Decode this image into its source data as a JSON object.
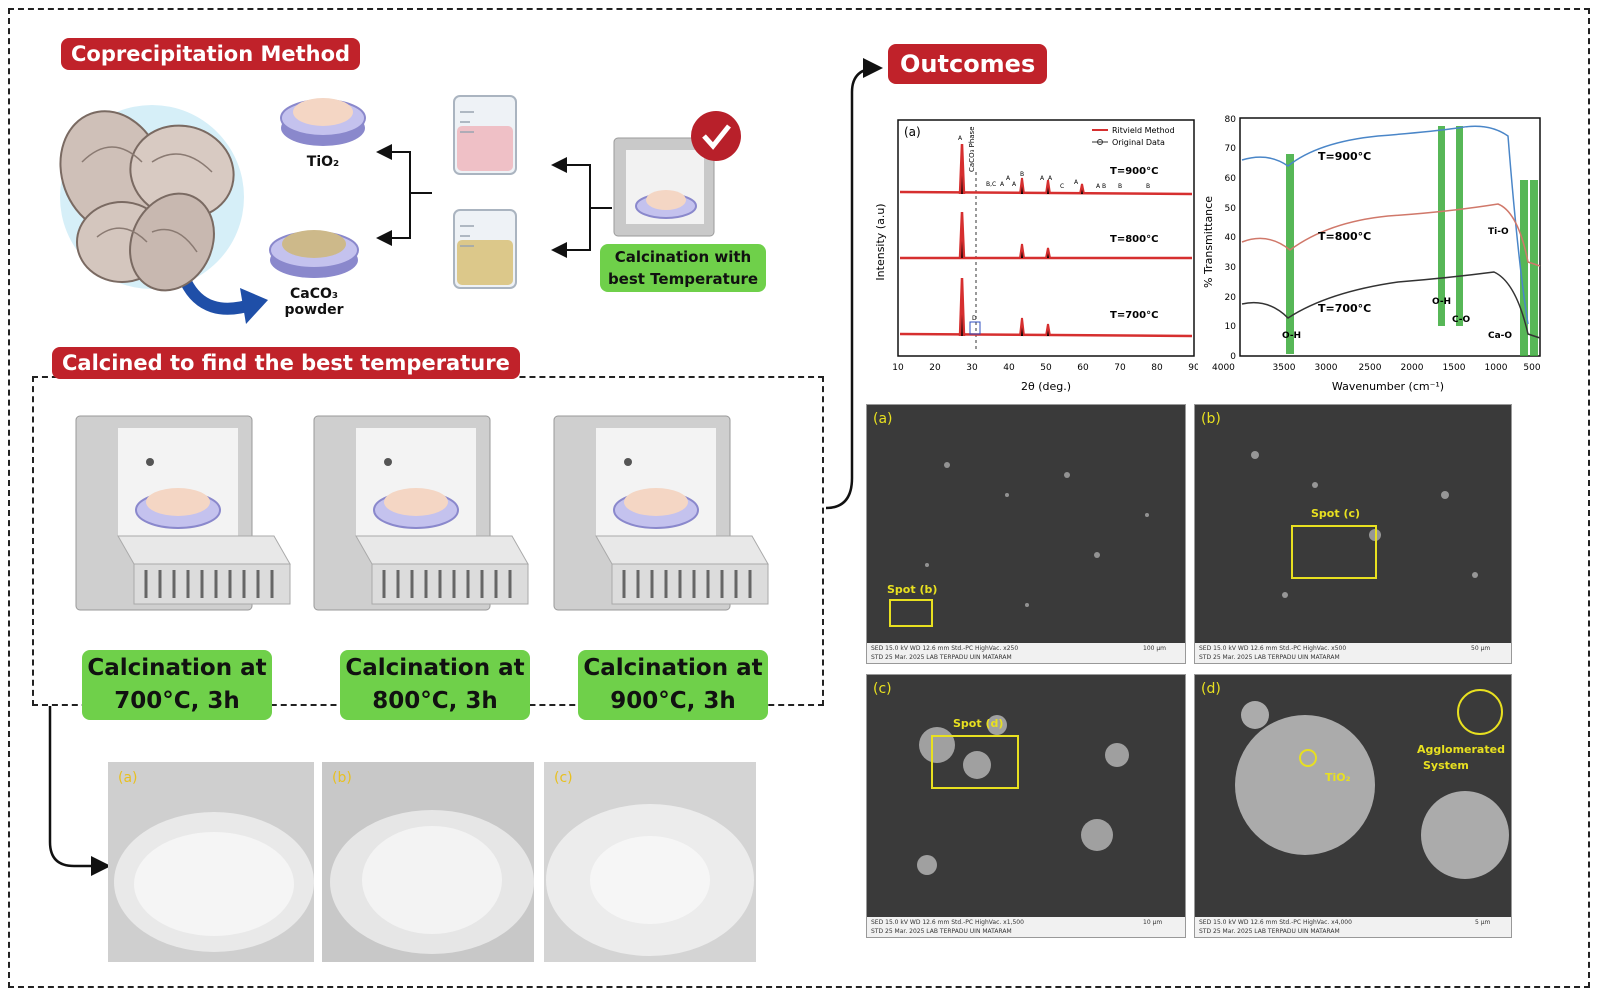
{
  "method": {
    "title": "Coprecipitation Method",
    "tio2_label": "TiO₂",
    "caco3_label_line1": "CaCO₃",
    "caco3_label_line2": "powder",
    "best_temp_line1": "Calcination with",
    "best_temp_line2": "best Temperature"
  },
  "calcined": {
    "title": "Calcined to find the best temperature",
    "stages": [
      {
        "line1": "Calcination at",
        "line2": "700°C, 3h"
      },
      {
        "line1": "Calcination at",
        "line2": "800°C, 3h"
      },
      {
        "line1": "Calcination at",
        "line2": "900°C, 3h"
      }
    ],
    "photos": [
      "(a)",
      "(b)",
      "(c)"
    ]
  },
  "outcomes": {
    "title": "Outcomes",
    "xrd": {
      "panel_letter": "(a)",
      "xlabel": "2θ (deg.)",
      "ylabel": "Intensity (a.u)",
      "legend": [
        "Ritvield Method",
        "Original Data"
      ],
      "phase_label": "CaCO₃ Phase",
      "series_labels": [
        "T=900°C",
        "T=800°C",
        "T=700°C"
      ],
      "xticks": [
        "10",
        "20",
        "30",
        "40",
        "50",
        "60",
        "70",
        "80",
        "90"
      ],
      "peak_letters": [
        "A",
        "B,C",
        "A",
        "A",
        "A",
        "B",
        "A",
        "A",
        "C",
        "A",
        "A",
        "B",
        "B",
        "B",
        "D"
      ]
    },
    "ftir": {
      "xlabel": "Wavenumber (cm⁻¹)",
      "ylabel": "% Transmittance",
      "series_labels": [
        "T=900°C",
        "T=800°C",
        "T=700°C"
      ],
      "yticks": [
        "0",
        "10",
        "20",
        "30",
        "40",
        "50",
        "60",
        "70",
        "80"
      ],
      "xticks": [
        "4000",
        "3500",
        "3000",
        "2500",
        "2000",
        "1500",
        "1000",
        "500"
      ],
      "annotations": [
        "O-H",
        "O-H",
        "C-O",
        "Ti-O",
        "Ca-O"
      ]
    },
    "sem": [
      {
        "letter": "(a)",
        "spot": "Spot (b)",
        "info1": "SED   15.0 kV   WD 12.6 mm   Std.-PC   HighVac.   x250",
        "info2": "STD   25 Mar. 2025   LAB TERPADU UIN MATARAM",
        "scale": "100 μm"
      },
      {
        "letter": "(b)",
        "spot": "Spot (c)",
        "info1": "SED   15.0 kV   WD 12.6 mm   Std.-PC   HighVac.   x500",
        "info2": "STD   25 Mar. 2025   LAB TERPADU UIN MATARAM",
        "scale": "50 μm"
      },
      {
        "letter": "(c)",
        "spot": "Spot (d)",
        "info1": "SED   15.0 kV   WD 12.6 mm   Std.-PC   HighVac.   x1,500",
        "info2": "STD   25 Mar. 2025   LAB TERPADU UIN MATARAM",
        "scale": "10 μm"
      },
      {
        "letter": "(d)",
        "spot": "",
        "info1": "SED   15.0 kV   WD 12.6 mm   Std.-PC   HighVac.   x4,000",
        "info2": "STD   25 Mar. 2025   LAB TERPADU UIN MATARAM",
        "scale": "5 μm"
      }
    ],
    "sem_d_labels": {
      "tio2": "TiO₂",
      "agg1": "Agglomerated",
      "agg2": "System"
    }
  }
}
